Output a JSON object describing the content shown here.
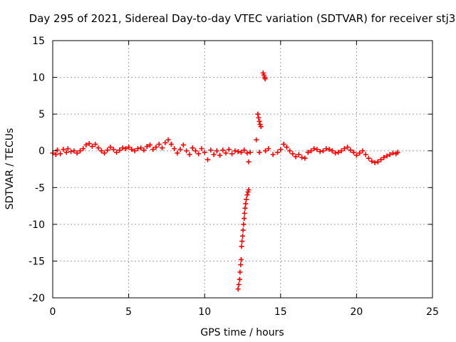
{
  "chart_data": {
    "type": "scatter",
    "title": "Day 295 of 2021, Sidereal Day-to-day VTEC variation (SDTVAR) for receiver stj3",
    "xlabel": "GPS time / hours",
    "ylabel": "SDTVAR / TECUs",
    "xlim": [
      0,
      25
    ],
    "ylim": [
      -20,
      15
    ],
    "xticks": [
      0,
      5,
      10,
      15,
      20,
      25
    ],
    "yticks": [
      -20,
      -15,
      -10,
      -5,
      0,
      5,
      10,
      15
    ],
    "grid": true,
    "marker": "+",
    "series": [
      {
        "name": "SDTVAR",
        "color": "#ff0000",
        "points": [
          [
            0.0,
            -0.3
          ],
          [
            0.2,
            -0.5
          ],
          [
            0.3,
            0.1
          ],
          [
            0.5,
            -0.4
          ],
          [
            0.7,
            0.2
          ],
          [
            0.9,
            -0.2
          ],
          [
            1.0,
            0.3
          ],
          [
            1.2,
            -0.1
          ],
          [
            1.4,
            0.0
          ],
          [
            1.6,
            -0.3
          ],
          [
            1.8,
            0.0
          ],
          [
            2.0,
            0.3
          ],
          [
            2.2,
            0.8
          ],
          [
            2.4,
            1.0
          ],
          [
            2.6,
            0.6
          ],
          [
            2.8,
            0.9
          ],
          [
            3.0,
            0.4
          ],
          [
            3.2,
            0.0
          ],
          [
            3.4,
            -0.3
          ],
          [
            3.6,
            0.1
          ],
          [
            3.8,
            0.5
          ],
          [
            4.0,
            0.2
          ],
          [
            4.2,
            -0.2
          ],
          [
            4.4,
            0.1
          ],
          [
            4.6,
            0.4
          ],
          [
            4.8,
            0.3
          ],
          [
            5.0,
            0.5
          ],
          [
            5.2,
            0.2
          ],
          [
            5.4,
            0.0
          ],
          [
            5.6,
            0.3
          ],
          [
            5.8,
            0.4
          ],
          [
            6.0,
            0.1
          ],
          [
            6.2,
            0.6
          ],
          [
            6.4,
            0.8
          ],
          [
            6.6,
            0.2
          ],
          [
            6.8,
            0.5
          ],
          [
            7.0,
            0.9
          ],
          [
            7.2,
            0.4
          ],
          [
            7.4,
            1.1
          ],
          [
            7.6,
            1.5
          ],
          [
            7.8,
            0.9
          ],
          [
            8.0,
            0.3
          ],
          [
            8.2,
            -0.3
          ],
          [
            8.4,
            0.2
          ],
          [
            8.6,
            0.8
          ],
          [
            8.8,
            0.0
          ],
          [
            9.0,
            -0.5
          ],
          [
            9.2,
            0.4
          ],
          [
            9.4,
            0.0
          ],
          [
            9.6,
            -0.4
          ],
          [
            9.8,
            0.3
          ],
          [
            10.0,
            -0.2
          ],
          [
            10.2,
            -1.2
          ],
          [
            10.4,
            0.1
          ],
          [
            10.6,
            -0.5
          ],
          [
            10.8,
            0.0
          ],
          [
            11.0,
            -0.6
          ],
          [
            11.2,
            0.1
          ],
          [
            11.4,
            -0.3
          ],
          [
            11.6,
            0.2
          ],
          [
            11.8,
            -0.4
          ],
          [
            12.0,
            0.0
          ],
          [
            12.2,
            -0.1
          ],
          [
            12.4,
            -0.2
          ],
          [
            12.6,
            0.1
          ],
          [
            12.8,
            -0.3
          ],
          [
            13.0,
            -0.2
          ],
          [
            12.9,
            -1.5
          ],
          [
            13.4,
            1.5
          ],
          [
            13.6,
            -0.2
          ],
          [
            14.0,
            0.0
          ],
          [
            14.2,
            0.3
          ],
          [
            14.5,
            -0.5
          ],
          [
            14.8,
            -0.2
          ],
          [
            15.0,
            0.2
          ],
          [
            15.2,
            0.9
          ],
          [
            15.4,
            0.5
          ],
          [
            15.6,
            0.0
          ],
          [
            15.8,
            -0.4
          ],
          [
            16.0,
            -0.8
          ],
          [
            16.2,
            -0.5
          ],
          [
            16.4,
            -0.9
          ],
          [
            16.6,
            -1.0
          ],
          [
            16.8,
            -0.2
          ],
          [
            17.0,
            0.0
          ],
          [
            17.2,
            0.3
          ],
          [
            17.4,
            0.2
          ],
          [
            17.6,
            -0.1
          ],
          [
            17.8,
            0.0
          ],
          [
            18.0,
            0.3
          ],
          [
            18.2,
            0.2
          ],
          [
            18.4,
            0.0
          ],
          [
            18.6,
            -0.3
          ],
          [
            18.8,
            -0.2
          ],
          [
            19.0,
            0.0
          ],
          [
            19.2,
            0.3
          ],
          [
            19.4,
            0.5
          ],
          [
            19.6,
            0.1
          ],
          [
            19.8,
            -0.2
          ],
          [
            20.0,
            -0.6
          ],
          [
            20.2,
            -0.3
          ],
          [
            20.4,
            0.0
          ],
          [
            20.6,
            -0.5
          ],
          [
            20.8,
            -1.0
          ],
          [
            21.0,
            -1.4
          ],
          [
            21.2,
            -1.6
          ],
          [
            21.4,
            -1.5
          ],
          [
            21.6,
            -1.2
          ],
          [
            21.8,
            -0.9
          ],
          [
            22.0,
            -0.7
          ],
          [
            22.2,
            -0.5
          ],
          [
            22.4,
            -0.3
          ],
          [
            22.6,
            -0.4
          ],
          [
            22.7,
            -0.2
          ],
          [
            12.2,
            -18.8
          ],
          [
            12.25,
            -18.2
          ],
          [
            12.3,
            -17.5
          ],
          [
            12.33,
            -16.5
          ],
          [
            12.37,
            -15.5
          ],
          [
            12.4,
            -14.8
          ],
          [
            12.43,
            -13.0
          ],
          [
            12.46,
            -12.3
          ],
          [
            12.5,
            -11.6
          ],
          [
            12.53,
            -10.8
          ],
          [
            12.56,
            -10.0
          ],
          [
            12.6,
            -9.2
          ],
          [
            12.63,
            -8.5
          ],
          [
            12.66,
            -7.8
          ],
          [
            12.7,
            -7.2
          ],
          [
            12.74,
            -6.6
          ],
          [
            12.8,
            -6.0
          ],
          [
            12.85,
            -5.6
          ],
          [
            12.9,
            -5.3
          ],
          [
            13.5,
            5.0
          ],
          [
            13.55,
            4.5
          ],
          [
            13.6,
            4.0
          ],
          [
            13.65,
            3.6
          ],
          [
            13.7,
            3.3
          ],
          [
            13.85,
            10.6
          ],
          [
            13.9,
            10.3
          ],
          [
            13.95,
            10.0
          ],
          [
            13.98,
            9.8
          ]
        ]
      }
    ]
  }
}
